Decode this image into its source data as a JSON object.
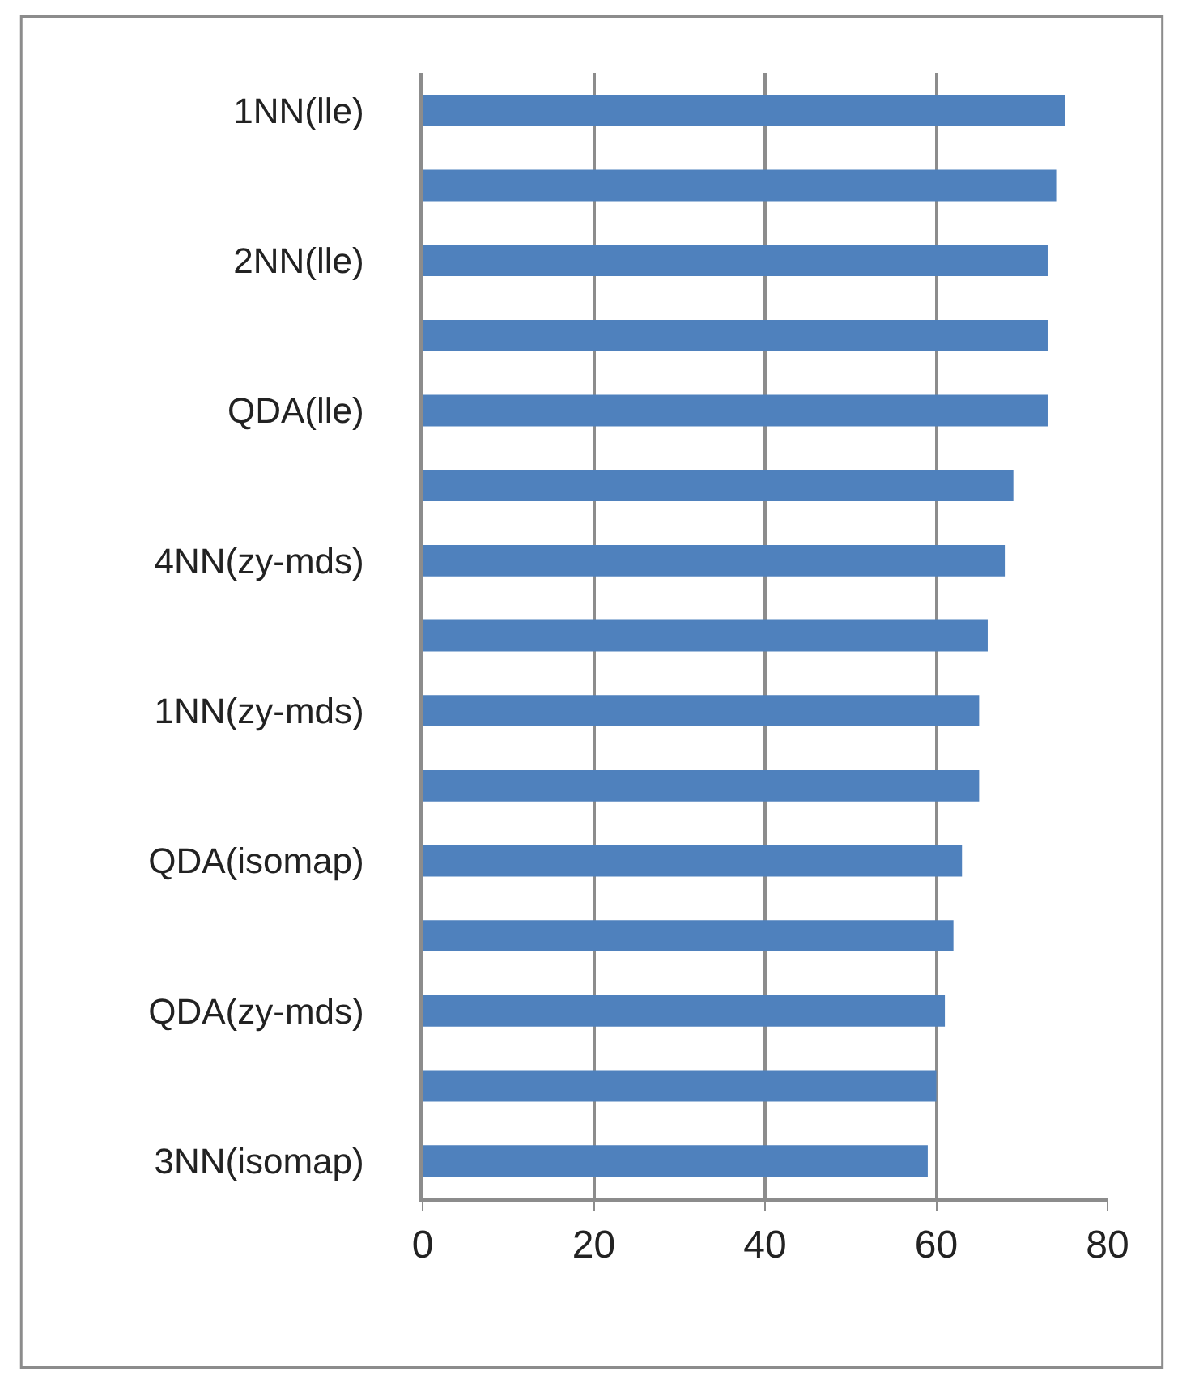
{
  "chart_data": {
    "type": "bar",
    "orientation": "horizontal",
    "categories": [
      "1NN(lle)",
      null,
      "2NN(lle)",
      null,
      "QDA(lle)",
      null,
      "4NN(zy-mds)",
      null,
      "1NN(zy-mds)",
      null,
      "QDA(isomap)",
      null,
      "QDA(zy-mds)",
      null,
      "3NN(isomap)"
    ],
    "values": [
      75,
      74,
      73,
      73,
      73,
      69,
      68,
      66,
      65,
      65,
      63,
      62,
      61,
      60,
      59
    ],
    "color": "#4f81bd",
    "xlim": [
      0,
      80
    ],
    "xticks": [
      0,
      20,
      40,
      60,
      80
    ],
    "grid": "x"
  }
}
